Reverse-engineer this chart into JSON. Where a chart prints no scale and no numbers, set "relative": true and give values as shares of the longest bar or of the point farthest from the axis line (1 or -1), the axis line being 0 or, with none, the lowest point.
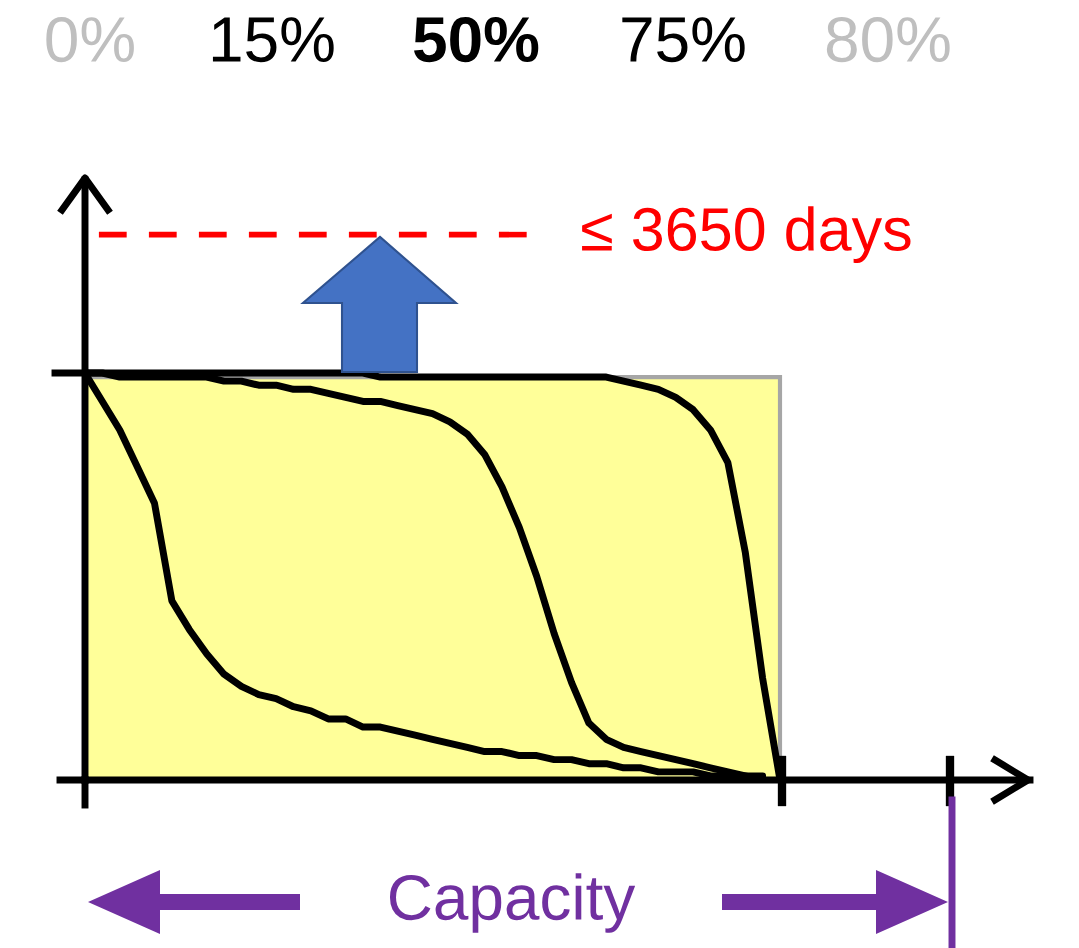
{
  "chart_data": {
    "type": "line",
    "relative": true,
    "categories": [
      null,
      null,
      null,
      null,
      null,
      null,
      null,
      null,
      null,
      null,
      null,
      null,
      null,
      null,
      null,
      null,
      null,
      null,
      null,
      null,
      null,
      null,
      null,
      null,
      null,
      null,
      null,
      null,
      null,
      null,
      null,
      null,
      null,
      null,
      null,
      null,
      null,
      null,
      null,
      null,
      null
    ],
    "series": [
      {
        "color": "#000000",
        "values": [
          1.0,
          0.93,
          0.86,
          0.77,
          0.68,
          0.44,
          0.37,
          0.31,
          0.26,
          0.23,
          0.21,
          0.2,
          0.18,
          0.17,
          0.15,
          0.15,
          0.13,
          0.13,
          0.12,
          0.11,
          0.1,
          0.09,
          0.08,
          0.07,
          0.07,
          0.06,
          0.06,
          0.05,
          0.05,
          0.04,
          0.04,
          0.03,
          0.03,
          0.02,
          0.02,
          0.02,
          0.01,
          0.01,
          0.01,
          0.0,
          null
        ]
      },
      {
        "color": "#000000",
        "values": [
          1.0,
          1.0,
          0.99,
          0.99,
          0.99,
          0.99,
          0.99,
          0.99,
          0.98,
          0.98,
          0.97,
          0.97,
          0.96,
          0.96,
          0.95,
          0.94,
          0.93,
          0.93,
          0.92,
          0.91,
          0.9,
          0.88,
          0.85,
          0.8,
          0.72,
          0.62,
          0.5,
          0.36,
          0.24,
          0.14,
          0.1,
          0.08,
          0.07,
          0.06,
          0.05,
          0.04,
          0.03,
          0.02,
          0.01,
          0.01,
          null
        ]
      },
      {
        "color": "#000000",
        "values": [
          1.0,
          1.0,
          1.0,
          1.0,
          1.0,
          1.0,
          1.0,
          1.0,
          1.0,
          1.0,
          1.0,
          1.0,
          1.0,
          1.0,
          1.0,
          1.0,
          1.0,
          0.99,
          0.99,
          0.99,
          0.99,
          0.99,
          0.99,
          0.99,
          0.99,
          0.99,
          0.99,
          0.99,
          0.99,
          0.99,
          0.99,
          0.98,
          0.97,
          0.96,
          0.94,
          0.91,
          0.86,
          0.78,
          0.56,
          0.25,
          0.0
        ]
      }
    ],
    "xlabel": "Capacity",
    "bands": [
      {
        "axis": "y",
        "from": 0,
        "to": 0.99,
        "color": "#ffff99"
      }
    ],
    "ref_lines": [
      {
        "axis": "y",
        "value": 1.34,
        "label": "≤ 3650 days",
        "color": "#ff0000",
        "line_style": "dashed"
      }
    ],
    "annotations": [
      "0%",
      "15%",
      "50%",
      "75%",
      "80%"
    ],
    "legend": false
  }
}
